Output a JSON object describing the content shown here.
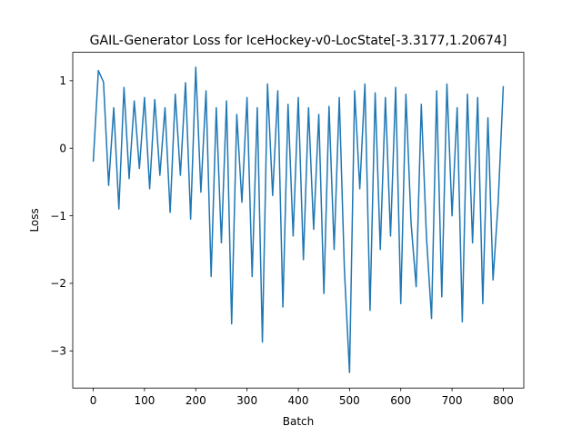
{
  "chart_data": {
    "type": "line",
    "title": "GAIL-Generator Loss for IceHockey-v0-LocState[-3.3177,1.20674]",
    "xlabel": "Batch",
    "ylabel": "Loss",
    "xlim": [
      -40,
      840
    ],
    "ylim": [
      -3.55,
      1.42
    ],
    "xticks": [
      0,
      100,
      200,
      300,
      400,
      500,
      600,
      700,
      800
    ],
    "yticks": [
      1,
      0,
      -1,
      -2,
      -3
    ],
    "ytick_labels": [
      "1",
      "0",
      "−1",
      "−2",
      "−3"
    ],
    "grid": false,
    "legend": "none",
    "line_color": "#1f77b4",
    "series": [
      {
        "x": [
          0,
          10,
          20,
          30,
          40,
          50,
          60,
          70,
          80,
          90,
          100,
          110,
          120,
          130,
          140,
          150,
          160,
          170,
          180,
          190,
          200,
          210,
          220,
          230,
          240,
          250,
          260,
          270,
          280,
          290,
          300,
          310,
          320,
          330,
          340,
          350,
          360,
          370,
          380,
          390,
          400,
          410,
          420,
          430,
          440,
          450,
          460,
          470,
          480,
          490,
          500,
          510,
          520,
          530,
          540,
          550,
          560,
          570,
          580,
          590,
          600,
          610,
          620,
          630,
          640,
          650,
          660,
          670,
          680,
          690,
          700,
          710,
          720,
          730,
          740,
          750,
          760,
          770,
          780,
          790,
          800
        ],
        "values": [
          -0.2,
          1.15,
          0.98,
          -0.55,
          0.6,
          -0.9,
          0.9,
          -0.45,
          0.7,
          -0.3,
          0.75,
          -0.6,
          0.72,
          -0.4,
          0.6,
          -0.95,
          0.8,
          -0.4,
          0.97,
          -1.05,
          1.2,
          -0.65,
          0.85,
          -1.9,
          0.6,
          -1.4,
          0.7,
          -2.6,
          0.5,
          -0.8,
          0.75,
          -1.9,
          0.6,
          -2.87,
          0.95,
          -0.7,
          0.85,
          -2.35,
          0.65,
          -1.3,
          0.75,
          -1.65,
          0.6,
          -1.2,
          0.5,
          -2.15,
          0.62,
          -1.5,
          0.75,
          -1.8,
          -3.32,
          0.85,
          -0.6,
          0.95,
          -2.4,
          0.82,
          -1.5,
          0.75,
          -1.3,
          0.9,
          -2.3,
          0.8,
          -1.1,
          -2.05,
          0.65,
          -1.3,
          -2.52,
          0.85,
          -2.2,
          0.95,
          -1.0,
          0.6,
          -2.57,
          0.8,
          -1.4,
          0.75,
          -2.3,
          0.45,
          -1.95,
          -0.8,
          0.92
        ]
      }
    ]
  }
}
